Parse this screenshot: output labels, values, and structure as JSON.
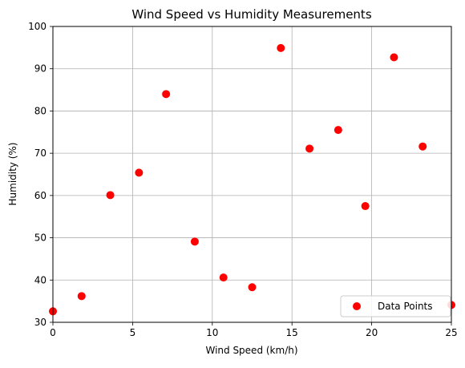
{
  "chart_data": {
    "type": "scatter",
    "title": "Wind Speed vs Humidity Measurements",
    "xlabel": "Wind Speed (km/h)",
    "ylabel": "Humidity (%)",
    "xlim": [
      0,
      25
    ],
    "ylim": [
      30,
      100
    ],
    "xticks": [
      0,
      5,
      10,
      15,
      20,
      25
    ],
    "yticks": [
      30,
      40,
      50,
      60,
      70,
      80,
      90,
      100
    ],
    "grid": true,
    "legend_position": "lower-right",
    "series": [
      {
        "name": "Data Points",
        "color": "#ff0000",
        "marker": "circle",
        "points": [
          {
            "x": 0.0,
            "y": 32.6
          },
          {
            "x": 1.8,
            "y": 36.2
          },
          {
            "x": 3.6,
            "y": 60.1
          },
          {
            "x": 5.4,
            "y": 65.4
          },
          {
            "x": 7.1,
            "y": 84.0
          },
          {
            "x": 8.9,
            "y": 49.1
          },
          {
            "x": 10.7,
            "y": 40.6
          },
          {
            "x": 12.5,
            "y": 38.3
          },
          {
            "x": 14.3,
            "y": 94.9
          },
          {
            "x": 16.1,
            "y": 71.1
          },
          {
            "x": 17.9,
            "y": 75.5
          },
          {
            "x": 19.6,
            "y": 57.5
          },
          {
            "x": 21.4,
            "y": 92.7
          },
          {
            "x": 23.2,
            "y": 71.6
          },
          {
            "x": 25.0,
            "y": 34.1
          }
        ]
      }
    ]
  }
}
